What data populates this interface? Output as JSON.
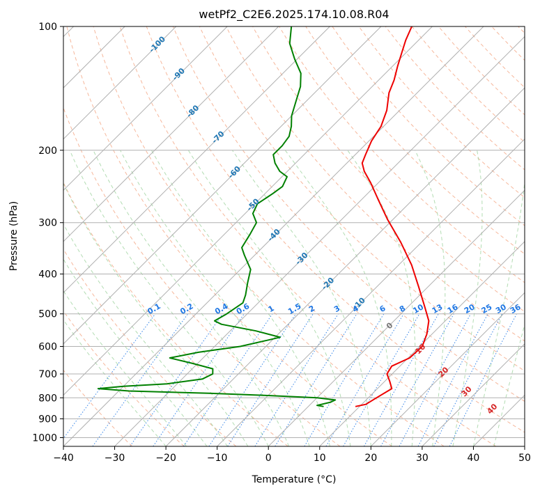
{
  "chart_data": {
    "type": "line",
    "title": "wetPf2_C2E6.2025.174.10.08.R04",
    "xlabel": "Temperature (°C)",
    "ylabel": "Pressure (hPa)",
    "xlim": [
      -40,
      50
    ],
    "ylim": [
      1050,
      100
    ],
    "y_scale": "log",
    "skew": "45deg",
    "x_ticks": [
      -40,
      -30,
      -20,
      -10,
      0,
      10,
      20,
      30,
      40,
      50
    ],
    "y_ticks": [
      100,
      200,
      300,
      400,
      500,
      600,
      700,
      800,
      900,
      1000
    ],
    "grid": true,
    "series": [
      {
        "kind": "temperature",
        "color": "#ee0000",
        "points": [
          [
            9.2,
            840
          ],
          [
            10.8,
            830
          ],
          [
            11.6,
            800
          ],
          [
            12.8,
            760
          ],
          [
            11.0,
            730
          ],
          [
            9.0,
            700
          ],
          [
            8.4,
            670
          ],
          [
            10.3,
            640
          ],
          [
            10.5,
            600
          ],
          [
            9.0,
            560
          ],
          [
            6.8,
            520
          ],
          [
            3.2,
            480
          ],
          [
            -1.8,
            430
          ],
          [
            -7.5,
            380
          ],
          [
            -14.0,
            335
          ],
          [
            -21.0,
            295
          ],
          [
            -26.5,
            265
          ],
          [
            -31.5,
            240
          ],
          [
            -35.0,
            225
          ],
          [
            -37.0,
            215
          ],
          [
            -38.0,
            205
          ],
          [
            -39.5,
            190
          ],
          [
            -40.5,
            175
          ],
          [
            -42.5,
            160
          ],
          [
            -45.5,
            145
          ],
          [
            -47.0,
            135
          ],
          [
            -49.0,
            125
          ],
          [
            -51.0,
            115
          ],
          [
            -52.5,
            108
          ],
          [
            -54.0,
            100
          ]
        ]
      },
      {
        "kind": "dewpoint",
        "color": "#008000",
        "points": [
          [
            3.0,
            840
          ],
          [
            1.5,
            835
          ],
          [
            3.5,
            820
          ],
          [
            4.0,
            810
          ],
          [
            0,
            800
          ],
          [
            -10,
            790
          ],
          [
            -22,
            780
          ],
          [
            -38,
            770
          ],
          [
            -44.5,
            760
          ],
          [
            -40,
            750
          ],
          [
            -32,
            740
          ],
          [
            -26,
            720
          ],
          [
            -25,
            700
          ],
          [
            -26,
            680
          ],
          [
            -31,
            660
          ],
          [
            -36.5,
            640
          ],
          [
            -32,
            620
          ],
          [
            -25,
            600
          ],
          [
            -21,
            580
          ],
          [
            -19,
            570
          ],
          [
            -25,
            550
          ],
          [
            -33,
            530
          ],
          [
            -35,
            520
          ],
          [
            -34,
            500
          ],
          [
            -33,
            470
          ],
          [
            -34,
            450
          ],
          [
            -36,
            420
          ],
          [
            -38,
            390
          ],
          [
            -42,
            360
          ],
          [
            -44,
            345
          ],
          [
            -45,
            320
          ],
          [
            -46,
            300
          ],
          [
            -48.5,
            285
          ],
          [
            -49.5,
            270
          ],
          [
            -48.5,
            255
          ],
          [
            -48,
            245
          ],
          [
            -49,
            232
          ],
          [
            -51.5,
            225
          ],
          [
            -54,
            215
          ],
          [
            -56,
            205
          ],
          [
            -56,
            195
          ],
          [
            -56.5,
            185
          ],
          [
            -58,
            175
          ],
          [
            -60,
            165
          ],
          [
            -62,
            152
          ],
          [
            -64,
            140
          ],
          [
            -66.5,
            130
          ],
          [
            -70.5,
            120
          ],
          [
            -74.5,
            110
          ],
          [
            -77.5,
            100
          ]
        ]
      }
    ],
    "annotations": {
      "dry_adiabats": [
        {
          "text": "-100",
          "t": -100,
          "p": 110
        },
        {
          "text": "-90",
          "t": -90,
          "p": 130
        },
        {
          "text": "-80",
          "t": -80,
          "p": 160
        },
        {
          "text": "-70",
          "t": -70,
          "p": 185
        },
        {
          "text": "-60",
          "t": -60,
          "p": 225
        },
        {
          "text": "-50",
          "t": -50,
          "p": 270
        },
        {
          "text": "-40",
          "t": -40,
          "p": 320
        },
        {
          "text": "-30",
          "t": -30,
          "p": 365
        },
        {
          "text": "-20",
          "t": -20,
          "p": 420
        },
        {
          "text": "-10",
          "t": -10,
          "p": 470
        }
      ],
      "mixing_ratios": [
        "0.1",
        "0.2",
        "0.4",
        "0.6",
        "1",
        "1.5",
        "2",
        "3",
        "4",
        "6",
        "8",
        "10",
        "13",
        "16",
        "20",
        "25",
        "30",
        "36"
      ],
      "moist_adiabats": [
        "0",
        "10",
        "20",
        "30",
        "40"
      ]
    },
    "colors": {
      "temperature": "#ee0000",
      "dewpoint": "#008000",
      "dry_adiabat": "#f4a582",
      "moist_adiabat": "#9fd39f",
      "mixing_ratio": "#1f77e4",
      "isotherm": "#999999",
      "annotation_blue": "#1f77b4",
      "annotation_red": "#d62728",
      "annotation_grey": "#777777"
    }
  }
}
